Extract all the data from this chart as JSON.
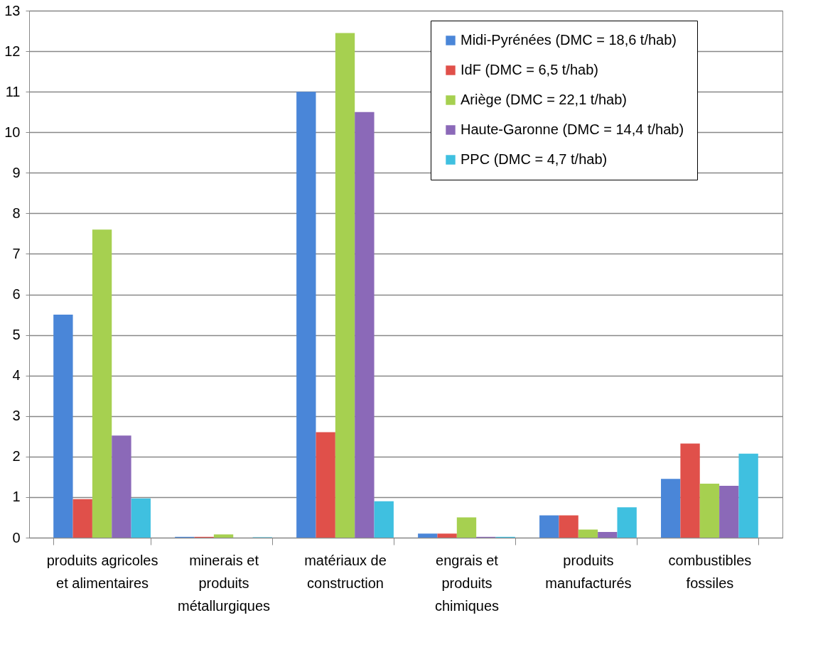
{
  "chart_data": {
    "type": "bar",
    "categories": [
      "produits agricoles\net alimentaires",
      "minerais et\nproduits\nmétallurgiques",
      "matériaux de\nconstruction",
      "engrais et\nproduits\nchimiques",
      "produits\nmanufacturés",
      "combustibles\nfossiles"
    ],
    "series": [
      {
        "name": "Midi-Pyrénées (DMC = 18,6 t/hab)",
        "color": "#4a86d8",
        "values": [
          5.5,
          0.02,
          11.0,
          0.1,
          0.55,
          1.45
        ]
      },
      {
        "name": "IdF (DMC = 6,5 t/hab)",
        "color": "#e0504a",
        "values": [
          0.95,
          0.02,
          2.6,
          0.1,
          0.55,
          2.32
        ]
      },
      {
        "name": "Ariège (DMC = 22,1 t/hab)",
        "color": "#a6d050",
        "values": [
          7.6,
          0.08,
          12.45,
          0.5,
          0.2,
          1.33
        ]
      },
      {
        "name": "Haute-Garonne (DMC = 14,4 t/hab)",
        "color": "#8b69b8",
        "values": [
          2.52,
          null,
          10.5,
          0.02,
          0.14,
          1.28
        ]
      },
      {
        "name": "PPC (DMC = 4,7 t/hab)",
        "color": "#3fc0e0",
        "values": [
          0.97,
          0.01,
          0.9,
          0.02,
          0.75,
          2.07
        ]
      }
    ],
    "ylim": [
      0,
      13
    ],
    "yticks": [
      0,
      1,
      2,
      3,
      4,
      5,
      6,
      7,
      8,
      9,
      10,
      11,
      12,
      13
    ],
    "grid": "y",
    "legend": "top right"
  }
}
